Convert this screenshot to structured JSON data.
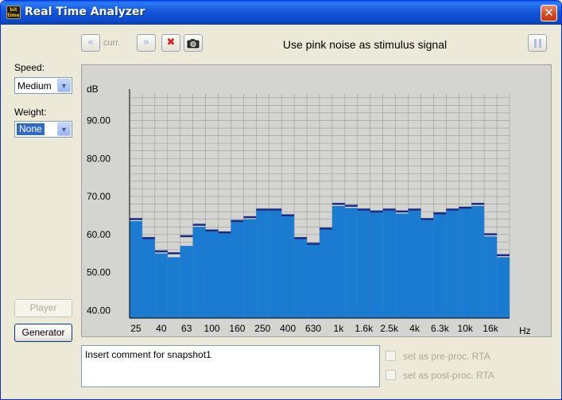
{
  "window": {
    "title": "Real Time Analyzer",
    "app_icon_text": "bit\ntime",
    "close_glyph": "✕"
  },
  "toolbar": {
    "prev_glyph": "«",
    "curr_label": "curr.",
    "next_glyph": "»",
    "delete_glyph": "✖",
    "camera_icon": "camera-icon",
    "stimulus_text": "Use pink noise as stimulus signal",
    "pause_icon": "pause-icon"
  },
  "left_panel": {
    "speed_label": "Speed:",
    "speed_value": "Medium",
    "weight_label": "Weight:",
    "weight_value": "None",
    "player_label": "Player",
    "generator_label": "Generator"
  },
  "chart_data": {
    "type": "bar",
    "ylabel": "dB",
    "xunit": "Hz",
    "ylim": [
      38,
      97
    ],
    "yticks": [
      "90.00",
      "80.00",
      "70.00",
      "60.00",
      "50.00",
      "40.00"
    ],
    "ytick_values": [
      90,
      80,
      70,
      60,
      50,
      40
    ],
    "xtick_labels": [
      "25",
      "40",
      "63",
      "100",
      "160",
      "250",
      "400",
      "630",
      "1k",
      "1.6k",
      "2.5k",
      "4k",
      "6.3k",
      "10k",
      "16k"
    ],
    "bands": [
      "25",
      "31.5",
      "40",
      "50",
      "63",
      "80",
      "100",
      "125",
      "160",
      "200",
      "250",
      "315",
      "400",
      "500",
      "630",
      "800",
      "1k",
      "1.25k",
      "1.6k",
      "2k",
      "2.5k",
      "3.15k",
      "4k",
      "5k",
      "6.3k",
      "8k",
      "10k",
      "12.5k",
      "16k",
      "20k"
    ],
    "values": [
      63.5,
      59.0,
      55.0,
      54.0,
      57.0,
      62.0,
      61.0,
      60.5,
      63.5,
      64.0,
      66.5,
      66.5,
      65.0,
      59.0,
      57.5,
      61.5,
      67.5,
      67.0,
      66.5,
      66.0,
      66.5,
      65.5,
      66.5,
      64.0,
      65.5,
      66.5,
      67.0,
      67.5,
      59.5,
      54.0
    ],
    "peaks": [
      64.0,
      59.0,
      55.5,
      55.0,
      59.5,
      62.5,
      61.0,
      60.5,
      63.5,
      64.5,
      66.5,
      66.5,
      65.0,
      59.0,
      57.5,
      61.5,
      68.0,
      67.5,
      66.5,
      66.0,
      66.5,
      66.0,
      66.5,
      64.0,
      65.5,
      66.5,
      67.0,
      68.0,
      60.0,
      54.5
    ],
    "bar_color": "#1a7bd1",
    "peak_color": "#1c2a80",
    "grid": true
  },
  "comment": {
    "text": "Insert comment for snapshot1"
  },
  "options": {
    "pre_label": "set as pre-proc. RTA",
    "post_label": "set as post-proc. RTA"
  }
}
